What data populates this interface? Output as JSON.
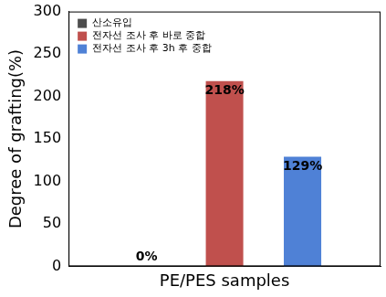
{
  "chart_data": {
    "type": "bar",
    "categories": [
      null
    ],
    "series": [
      {
        "name": "산소유입",
        "color": "#4d4d4d",
        "values": [
          0
        ],
        "value_labels": [
          "0%"
        ]
      },
      {
        "name": "전자선 조사 후 바로 중합",
        "color": "#c0504d",
        "values": [
          218
        ],
        "value_labels": [
          "218%"
        ]
      },
      {
        "name": "전자선 조사 후 3h 후 중합",
        "color": "#4f81d6",
        "values": [
          129
        ],
        "value_labels": [
          "129%"
        ]
      }
    ],
    "x_label": "PE/PES samples",
    "y_label": "Degree of grafting(%)",
    "ylim": [
      0,
      300
    ],
    "yticks": [
      0,
      50,
      100,
      150,
      200,
      250,
      300
    ],
    "grid": false,
    "legend": "upper left",
    "data_labels": true,
    "tick_labels": "y"
  }
}
